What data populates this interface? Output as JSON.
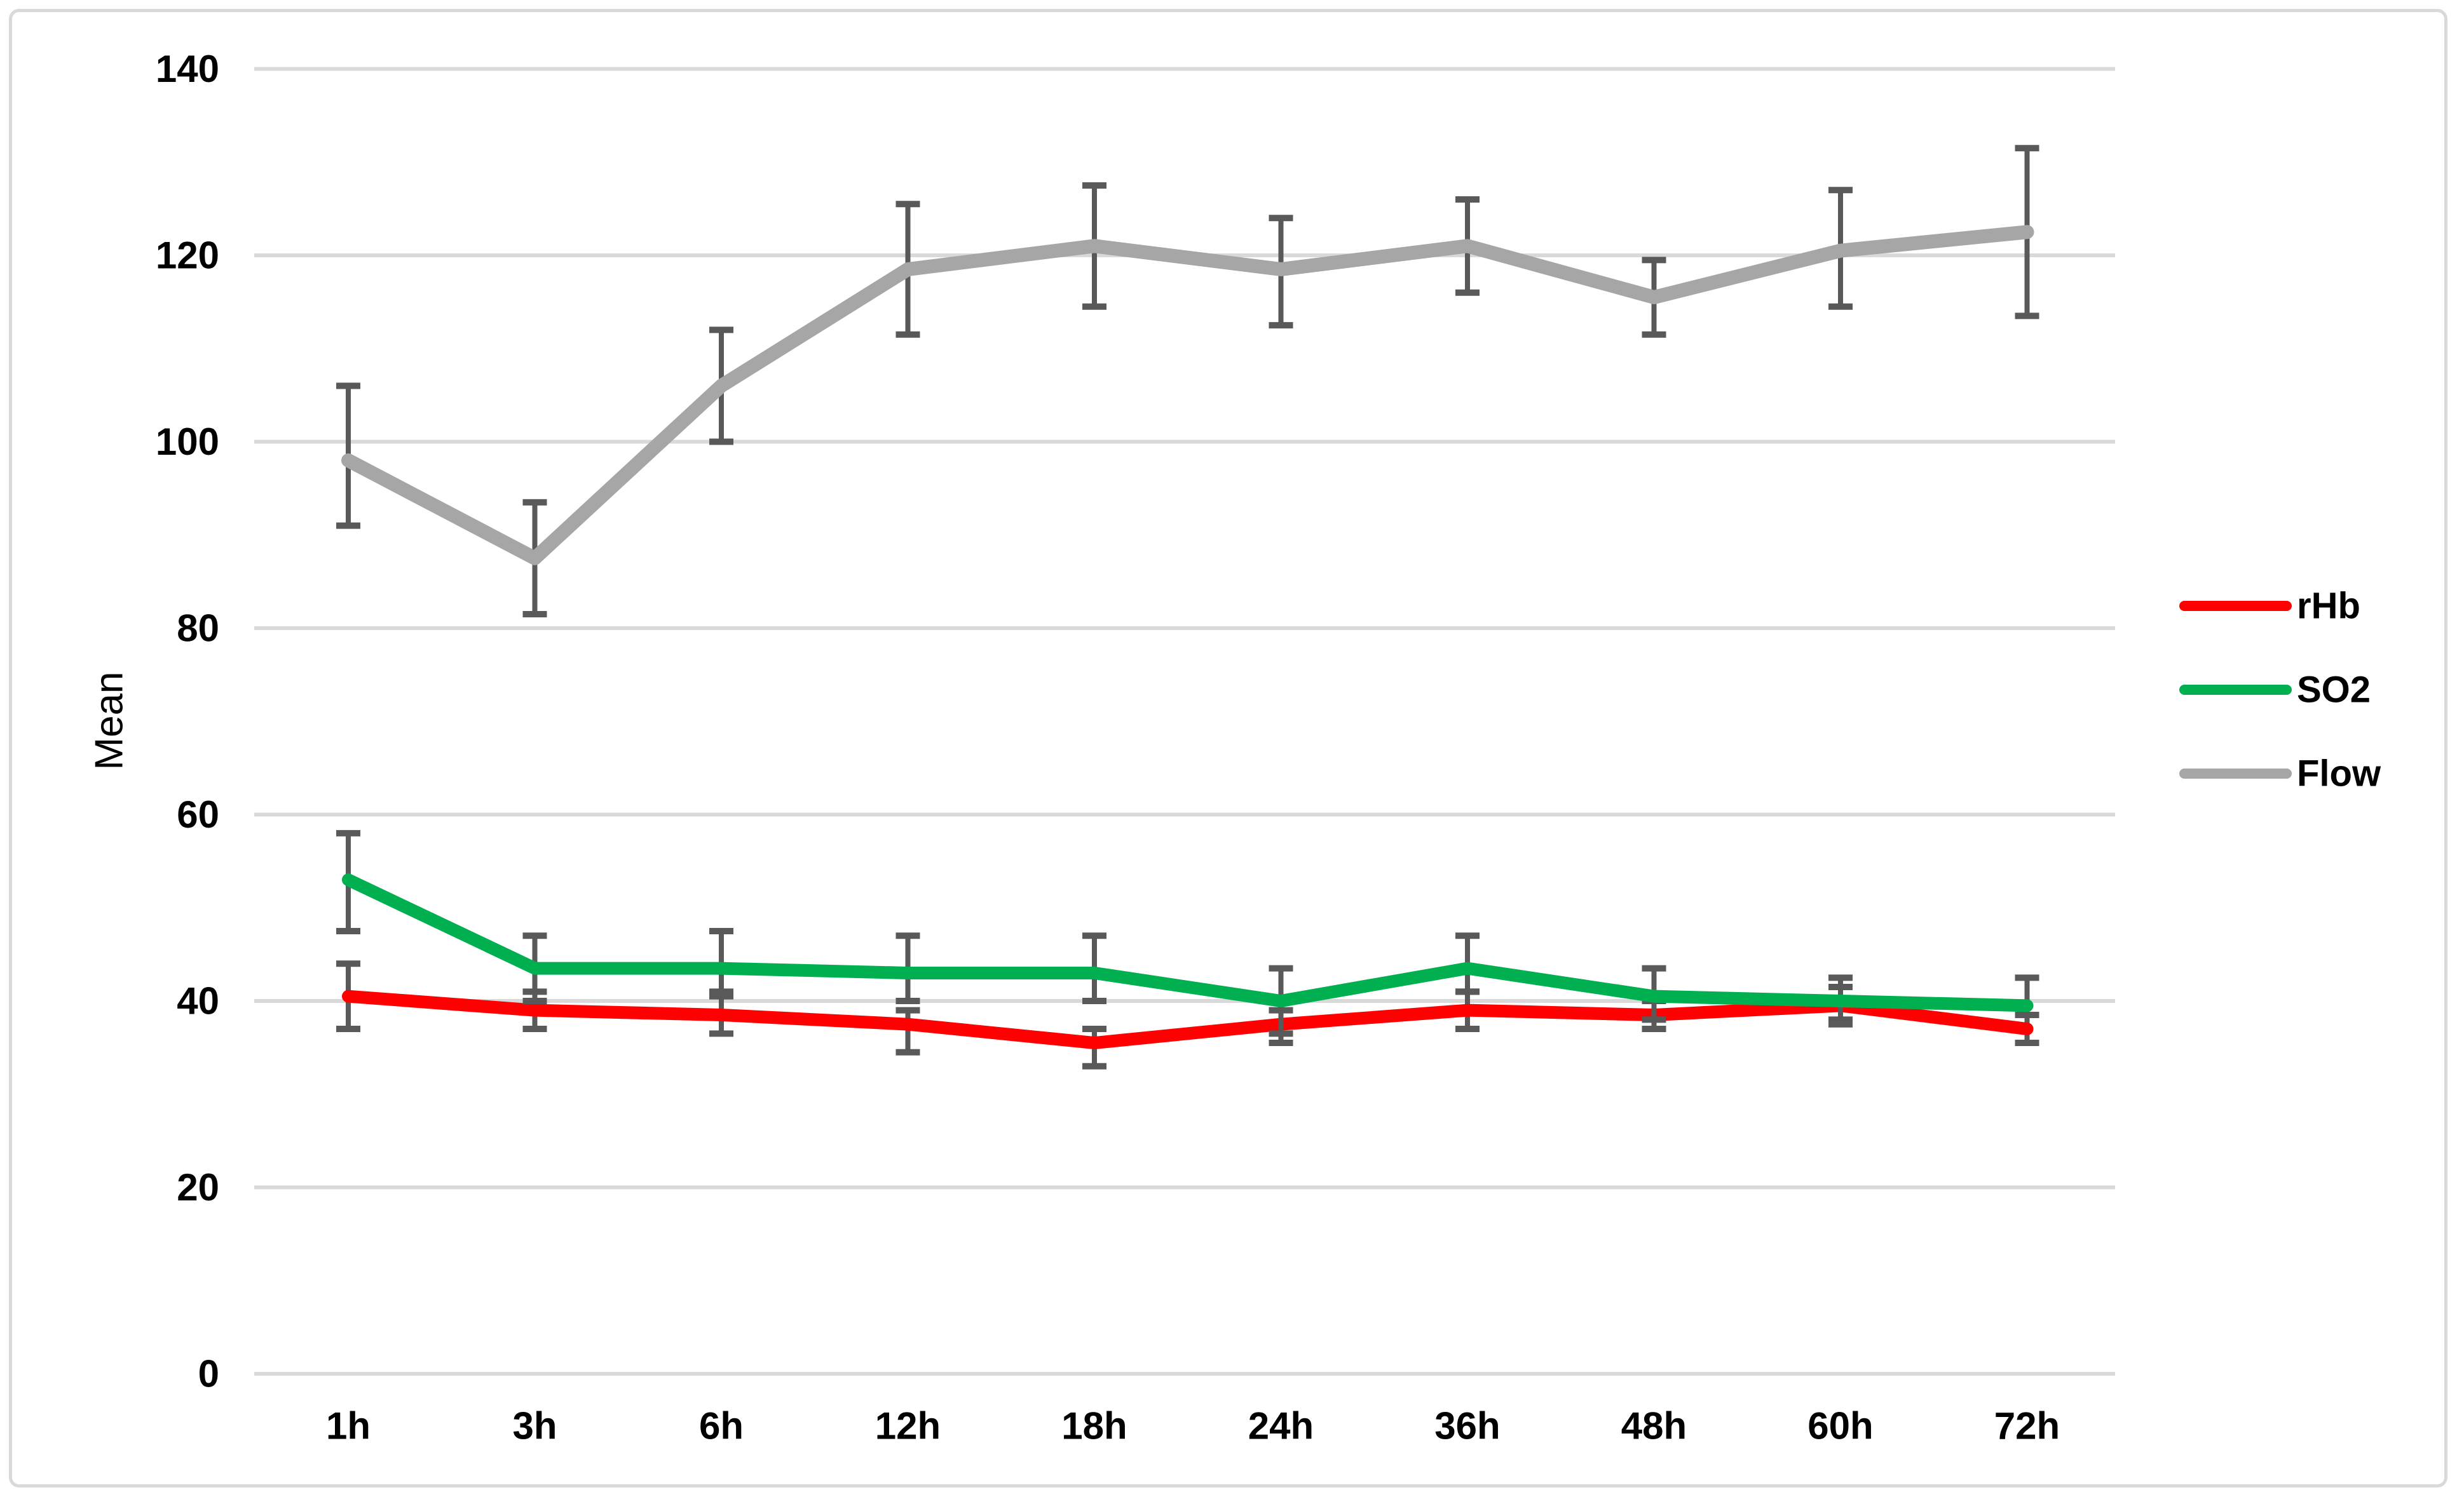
{
  "chart_data": {
    "type": "line",
    "title": "",
    "xlabel": "",
    "ylabel": "Mean",
    "categories": [
      "1h",
      "3h",
      "6h",
      "12h",
      "18h",
      "24h",
      "36h",
      "48h",
      "60h",
      "72h"
    ],
    "yticks": [
      0,
      20,
      40,
      60,
      80,
      100,
      120,
      140
    ],
    "ylim": [
      0,
      140
    ],
    "grid": true,
    "error_bars": true,
    "legend_position": "right",
    "gridline_color": "#d9d9d9",
    "error_bar_color": "#595959",
    "tick_label_color": "#000000",
    "series": [
      {
        "name": "rHb",
        "color": "#ff0000",
        "values": [
          40.5,
          39,
          38.5,
          37.5,
          35.5,
          37.5,
          39,
          38.5,
          39.5,
          37
        ],
        "err_low": [
          37,
          37,
          36.5,
          34.5,
          33,
          35.5,
          37,
          37,
          37.5,
          35.5
        ],
        "err_high": [
          44,
          41,
          41,
          39,
          37,
          39,
          41,
          40,
          41.5,
          38.5
        ]
      },
      {
        "name": "SO2",
        "color": "#00b050",
        "values": [
          53,
          43.5,
          43.5,
          43,
          43,
          40,
          43.5,
          40.5,
          40,
          39.5
        ],
        "err_low": [
          47.5,
          40,
          40.5,
          40,
          40,
          36.5,
          41,
          38,
          38,
          38.5
        ],
        "err_high": [
          58,
          47,
          47.5,
          47,
          47,
          43.5,
          47,
          43.5,
          42.5,
          42.5
        ]
      },
      {
        "name": "Flow",
        "color": "#a6a6a6",
        "values": [
          98,
          87.5,
          106,
          118.5,
          121,
          118.5,
          121,
          115.5,
          120.5,
          122.5
        ],
        "err_low": [
          91,
          81.5,
          100,
          111.5,
          114.5,
          112.5,
          116,
          111.5,
          114.5,
          113.5
        ],
        "err_high": [
          106,
          93.5,
          112,
          125.5,
          127.5,
          124,
          126,
          119.5,
          127,
          131.5
        ]
      }
    ]
  }
}
